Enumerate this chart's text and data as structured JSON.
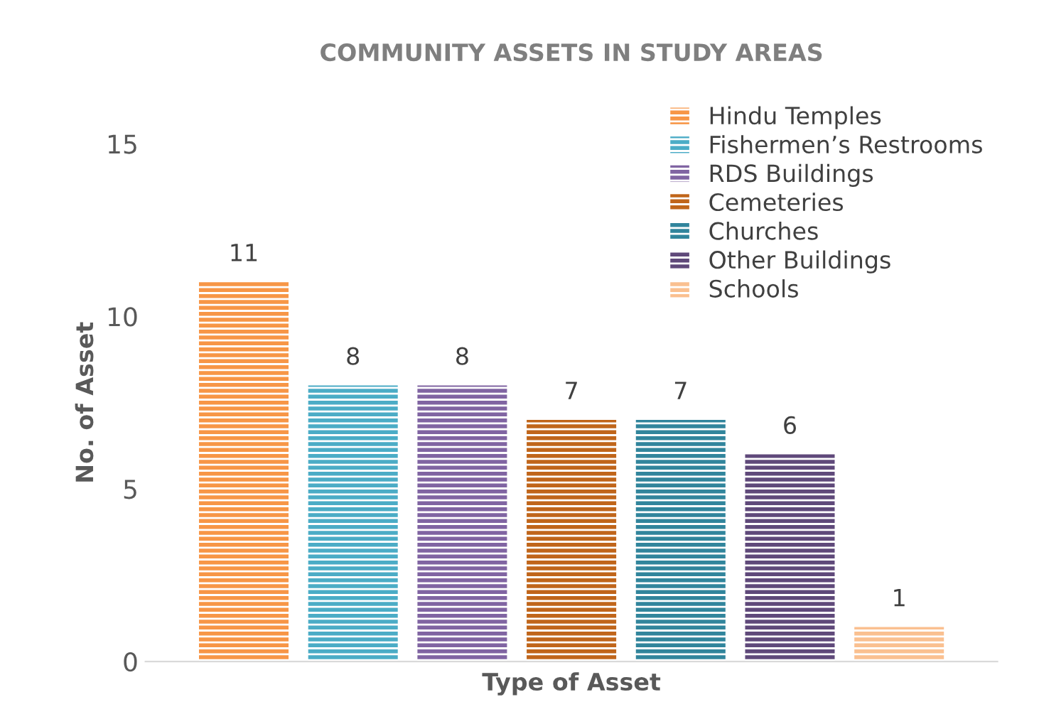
{
  "chart_data": {
    "type": "bar",
    "title": "COMMUNITY ASSETS IN STUDY AREAS",
    "xlabel": "Type of Asset",
    "ylabel": "No. of Asset",
    "categories": [
      null,
      null,
      null,
      null,
      null,
      null,
      null
    ],
    "series": [
      {
        "name": "Hindu Temples",
        "color": "#f79646",
        "values": [
          11,
          null,
          null,
          null,
          null,
          null,
          null
        ]
      },
      {
        "name": "Fishermen’s Restrooms",
        "color": "#4bacc6",
        "values": [
          null,
          8,
          null,
          null,
          null,
          null,
          null
        ]
      },
      {
        "name": "RDS Buildings",
        "color": "#8064a2",
        "values": [
          null,
          null,
          8,
          null,
          null,
          null,
          null
        ]
      },
      {
        "name": "Cemeteries",
        "color": "#c0651a",
        "values": [
          null,
          null,
          null,
          7,
          null,
          null,
          null
        ]
      },
      {
        "name": "Churches",
        "color": "#31859c",
        "values": [
          null,
          null,
          null,
          null,
          7,
          null,
          null
        ]
      },
      {
        "name": "Other Buildings",
        "color": "#5f497a",
        "values": [
          null,
          null,
          null,
          null,
          null,
          6,
          null
        ]
      },
      {
        "name": "Schools",
        "color": "#fac090",
        "values": [
          null,
          null,
          null,
          null,
          null,
          null,
          1
        ]
      }
    ],
    "ylim": [
      0,
      15
    ],
    "yticks": [
      0,
      5,
      10,
      15
    ],
    "data_labels": true,
    "grid": false,
    "legend": "top right"
  }
}
